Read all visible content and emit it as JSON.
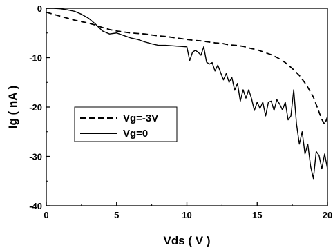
{
  "chart_data": {
    "type": "line",
    "xlabel": "Vds ( V )",
    "ylabel": "Ig ( nA )",
    "xlim": [
      0,
      20
    ],
    "ylim": [
      -40,
      0
    ],
    "xticks": [
      0,
      5,
      10,
      15,
      20
    ],
    "yticks": [
      0,
      -10,
      -20,
      -30,
      -40
    ],
    "xtick_labels": [
      "0",
      "5",
      "10",
      "15",
      "20"
    ],
    "ytick_labels": [
      "0",
      "-10",
      "-20",
      "-30",
      "-40"
    ],
    "grid": false,
    "legend_position": "middle-left",
    "series": [
      {
        "name": "Vg=-3V",
        "style": "dashed",
        "color": "#000000",
        "x": [
          0,
          0.5,
          1,
          1.5,
          2,
          2.5,
          3,
          3.5,
          4,
          4.5,
          5,
          5.5,
          6,
          6.5,
          7,
          7.5,
          8,
          8.5,
          9,
          9.5,
          10,
          10.5,
          11,
          11.5,
          12,
          12.5,
          13,
          13.5,
          14,
          14.5,
          15,
          15.5,
          16,
          16.5,
          17,
          17.5,
          18,
          18.5,
          19,
          19.2,
          19.4,
          19.6,
          19.8,
          20
        ],
        "y": [
          -0.8,
          -1.2,
          -1.6,
          -2.0,
          -2.4,
          -2.7,
          -3.0,
          -3.4,
          -3.9,
          -4.3,
          -4.6,
          -4.8,
          -5.0,
          -5.1,
          -5.2,
          -5.4,
          -5.6,
          -5.7,
          -5.9,
          -6.1,
          -6.3,
          -6.5,
          -6.6,
          -6.8,
          -7.0,
          -7.1,
          -7.4,
          -7.5,
          -7.7,
          -8.1,
          -8.4,
          -8.9,
          -9.4,
          -10.1,
          -11.0,
          -12.2,
          -13.6,
          -15.5,
          -18.0,
          -19.5,
          -21.0,
          -22.5,
          -23.5,
          -22.0
        ]
      },
      {
        "name": "Vg=0",
        "style": "solid",
        "color": "#000000",
        "x": [
          0,
          0.5,
          1,
          1.5,
          2,
          2.5,
          3,
          3.5,
          4,
          4.5,
          5,
          5.5,
          6,
          6.5,
          7,
          7.5,
          8,
          8.5,
          9,
          9.5,
          10,
          10.2,
          10.4,
          10.6,
          10.8,
          11,
          11.2,
          11.4,
          11.6,
          11.8,
          12,
          12.2,
          12.4,
          12.6,
          12.8,
          13,
          13.2,
          13.4,
          13.6,
          13.8,
          14,
          14.2,
          14.4,
          14.6,
          14.8,
          15,
          15.2,
          15.4,
          15.6,
          15.8,
          16,
          16.2,
          16.4,
          16.6,
          16.8,
          17,
          17.2,
          17.4,
          17.6,
          17.8,
          18,
          18.2,
          18.4,
          18.6,
          18.8,
          19,
          19.2,
          19.4,
          19.6,
          19.8,
          20
        ],
        "y": [
          0,
          0,
          -0.1,
          -0.3,
          -0.6,
          -1.2,
          -2.0,
          -3.2,
          -4.6,
          -5.2,
          -5.0,
          -5.5,
          -6.0,
          -6.3,
          -6.8,
          -7.2,
          -7.5,
          -7.5,
          -7.6,
          -7.7,
          -7.8,
          -10.6,
          -8.9,
          -8.5,
          -8.9,
          -9.5,
          -7.8,
          -10.9,
          -11.3,
          -11.0,
          -12.7,
          -11.5,
          -13.0,
          -14.5,
          -13.2,
          -15.0,
          -14.0,
          -16.6,
          -15.2,
          -18.8,
          -16.5,
          -18.2,
          -16.5,
          -18.3,
          -20.7,
          -19.0,
          -20.3,
          -19.0,
          -21.8,
          -19.0,
          -18.8,
          -20.7,
          -18.5,
          -19.4,
          -20.6,
          -19.0,
          -22.6,
          -21.8,
          -16.5,
          -23.5,
          -27.5,
          -25.0,
          -29.5,
          -27.5,
          -32.0,
          -34.5,
          -29.0,
          -29.8,
          -32.5,
          -29.5,
          -32.5
        ]
      }
    ]
  }
}
